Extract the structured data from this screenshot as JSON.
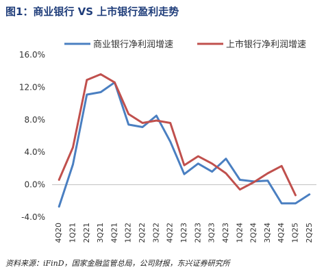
{
  "figure": {
    "title": "图1：商业银行 VS 上市银行盈利走势",
    "source": "资料来源：iFinD，国家金融监管总局，公司财报，东兴证券研究所"
  },
  "chart_data": {
    "type": "line",
    "title": "",
    "xlabel": "",
    "ylabel": "",
    "categories": [
      "4Q20",
      "1Q21",
      "2Q21",
      "3Q21",
      "4Q21",
      "1Q22",
      "2Q22",
      "3Q22",
      "4Q22",
      "1Q23",
      "2Q23",
      "3Q23",
      "4Q23",
      "1Q24",
      "2Q24",
      "3Q24",
      "4Q24",
      "1Q25",
      "2Q25"
    ],
    "yticks": [
      "-4.0%",
      "0.0%",
      "4.0%",
      "8.0%",
      "12.0%",
      "16.0%"
    ],
    "ylim": [
      -4,
      16
    ],
    "grid": false,
    "legend_position": "top",
    "series": [
      {
        "name": "商业银行净利润增速",
        "color": "#4a7fc1",
        "values": [
          -2.7,
          2.5,
          11.1,
          11.4,
          12.6,
          7.4,
          7.1,
          8.5,
          5.3,
          1.3,
          2.6,
          1.6,
          3.2,
          0.6,
          0.4,
          0.5,
          -2.3,
          -2.3,
          -1.2
        ]
      },
      {
        "name": "上市银行净利润增速",
        "color": "#c0504d",
        "values": [
          0.6,
          4.6,
          12.9,
          13.6,
          12.6,
          8.7,
          7.6,
          7.9,
          7.6,
          2.4,
          3.5,
          2.6,
          1.4,
          -0.6,
          0.3,
          1.4,
          2.3,
          -1.3,
          null
        ]
      }
    ]
  }
}
